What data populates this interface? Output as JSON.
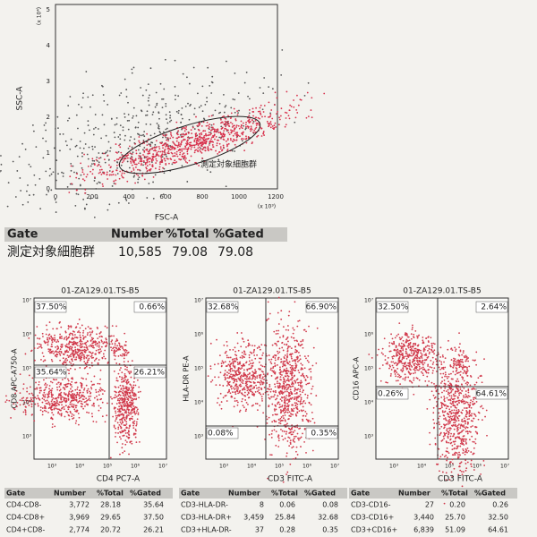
{
  "top_plot": {
    "y_label": "SSC-A",
    "x_label": "FSC-A",
    "y_multiplier": "(x 10⁴)",
    "x_multiplier": "(x 10³)",
    "gate_label": "測定対象細胞群",
    "y_ticks": [
      "0",
      "1",
      "2",
      "3",
      "4",
      "5"
    ],
    "x_ticks": [
      "0",
      "200",
      "400",
      "600",
      "800",
      "1000",
      "1200"
    ]
  },
  "gate_table": {
    "headers": [
      "Gate",
      "Number",
      "%Total",
      "%Gated"
    ],
    "rows": [
      [
        "測定対象細胞群",
        "10,585",
        "79.08",
        "79.08"
      ]
    ]
  },
  "plots": [
    {
      "title": "01-ZA129.01.TS-B5",
      "y_label": "CD8 APC-A750-A",
      "x_label": "CD4 PC7-A",
      "quadrants": [
        "37.50%",
        "0.66%",
        "35.64%",
        "26.21%"
      ]
    },
    {
      "title": "01-ZA129.01.TS-B5",
      "y_label": "HLA-DR PE-A",
      "x_label": "CD3 FITC-A",
      "quadrants": [
        "32.68%",
        "66.90%",
        "0.08%",
        "0.35%"
      ]
    },
    {
      "title": "01-ZA129.01.TS-B5",
      "y_label": "CD16 APC-A",
      "x_label": "CD3 FITC-A",
      "quadrants": [
        "32.50%",
        "2.64%",
        "0.26%",
        "64.61%"
      ]
    }
  ],
  "log_y_ticks": [
    "10⁷",
    "10⁶",
    "10⁵",
    "10⁴",
    "10³"
  ],
  "log_x_ticks": [
    "10³",
    "10⁴",
    "10⁵",
    "10⁶",
    "10⁷"
  ],
  "tables": [
    {
      "headers": [
        "Gate",
        "Number",
        "%Total",
        "%Gated"
      ],
      "rows": [
        [
          "CD4-CD8-",
          "3,772",
          "28.18",
          "35.64"
        ],
        [
          "CD4-CD8+",
          "3,969",
          "29.65",
          "37.50"
        ],
        [
          "CD4+CD8-",
          "2,774",
          "20.72",
          "26.21"
        ]
      ]
    },
    {
      "headers": [
        "Gate",
        "Number",
        "%Total",
        "%Gated"
      ],
      "rows": [
        [
          "CD3-HLA-DR-",
          "8",
          "0.06",
          "0.08"
        ],
        [
          "CD3-HLA-DR+",
          "3,459",
          "25.84",
          "32.68"
        ],
        [
          "CD3+HLA-DR-",
          "37",
          "0.28",
          "0.35"
        ]
      ]
    },
    {
      "headers": [
        "Gate",
        "Number",
        "%Total",
        "%Gated"
      ],
      "rows": [
        [
          "CD3-CD16-",
          "27",
          "0.20",
          "0.26"
        ],
        [
          "CD3-CD16+",
          "3,440",
          "25.70",
          "32.50"
        ],
        [
          "CD3+CD16+",
          "6,839",
          "51.09",
          "64.61"
        ]
      ]
    }
  ]
}
